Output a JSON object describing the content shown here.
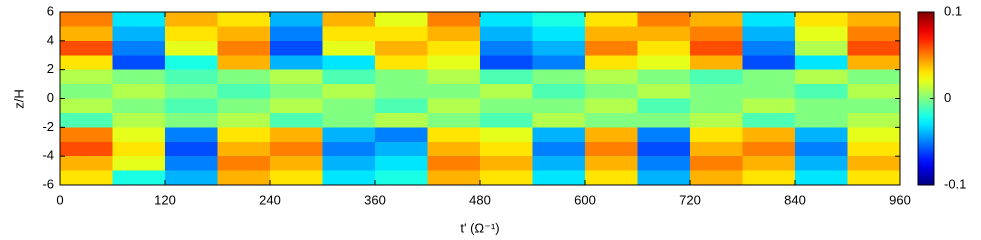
{
  "chart_data": {
    "type": "heatmap",
    "xlabel": "t' (Ω⁻¹)",
    "ylabel": "z/H",
    "x": [
      30,
      90,
      150,
      210,
      270,
      330,
      390,
      450,
      510,
      570,
      630,
      690,
      750,
      810,
      870,
      930
    ],
    "y": [
      5.5,
      4.5,
      3.5,
      2.5,
      1.5,
      0.5,
      -0.5,
      -1.5,
      -2.5,
      -3.5,
      -4.5,
      -5.5
    ],
    "z": [
      [
        0.05,
        -0.03,
        0.04,
        0.03,
        -0.04,
        0.04,
        0.02,
        0.05,
        -0.03,
        -0.02,
        0.03,
        0.05,
        0.04,
        -0.03,
        0.03,
        0.04
      ],
      [
        0.04,
        -0.04,
        0.03,
        0.04,
        -0.05,
        0.03,
        0.03,
        0.04,
        -0.04,
        -0.03,
        0.04,
        0.04,
        0.05,
        -0.04,
        0.02,
        0.05
      ],
      [
        0.06,
        -0.05,
        0.02,
        0.05,
        -0.06,
        0.02,
        0.04,
        0.03,
        -0.05,
        -0.04,
        0.05,
        0.03,
        0.06,
        -0.05,
        0.01,
        0.06
      ],
      [
        0.03,
        -0.06,
        -0.02,
        0.04,
        -0.04,
        -0.03,
        0.03,
        0.02,
        -0.06,
        -0.05,
        0.03,
        0.02,
        0.04,
        -0.06,
        -0.03,
        0.04
      ],
      [
        0.01,
        0,
        -0.01,
        0,
        0.01,
        -0.01,
        0,
        0.01,
        -0.01,
        0,
        0.01,
        0,
        -0.01,
        0,
        0.01,
        0
      ],
      [
        0,
        0.01,
        0,
        -0.01,
        0,
        0.01,
        0,
        0,
        0.01,
        -0.01,
        0,
        0.01,
        0,
        0,
        -0.01,
        0.01
      ],
      [
        0.01,
        0,
        -0.01,
        0,
        0.01,
        0,
        -0.01,
        0.01,
        0,
        0,
        0.01,
        -0.01,
        0,
        0.01,
        0,
        0
      ],
      [
        -0.01,
        0.01,
        0,
        0.01,
        -0.01,
        0,
        0.01,
        0,
        -0.01,
        0.01,
        0,
        0,
        0.01,
        -0.01,
        0,
        0.01
      ],
      [
        0.05,
        0.02,
        -0.05,
        0.03,
        0.04,
        -0.04,
        -0.05,
        0.03,
        0.02,
        -0.04,
        0.04,
        -0.05,
        0.03,
        0.04,
        -0.04,
        0.02
      ],
      [
        0.06,
        0.03,
        -0.06,
        0.04,
        0.05,
        -0.05,
        -0.04,
        0.04,
        0.03,
        -0.05,
        0.05,
        -0.06,
        0.04,
        0.05,
        -0.05,
        0.03
      ],
      [
        0.04,
        0.02,
        -0.05,
        0.05,
        0.04,
        -0.04,
        -0.03,
        0.05,
        0.04,
        -0.04,
        0.04,
        -0.05,
        0.05,
        0.04,
        -0.04,
        0.04
      ],
      [
        0.03,
        -0.02,
        -0.04,
        0.04,
        0.03,
        -0.03,
        -0.02,
        0.04,
        0.03,
        -0.03,
        0.03,
        -0.04,
        0.04,
        0.03,
        -0.03,
        0.03
      ]
    ],
    "colormap": "jet",
    "clim": [
      -0.1,
      0.1
    ],
    "cticks": [
      -0.1,
      0,
      0.1
    ],
    "xlim": [
      0,
      960
    ],
    "xticks": [
      0,
      120,
      240,
      360,
      480,
      600,
      720,
      840,
      960
    ],
    "ylim": [
      -6,
      6
    ],
    "yticks": [
      -6,
      -4,
      -2,
      0,
      2,
      4,
      6
    ]
  }
}
